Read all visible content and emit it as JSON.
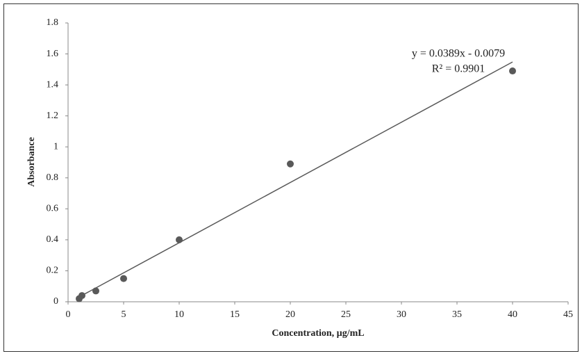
{
  "chart_data": {
    "type": "scatter",
    "x_label": "Concentration, µg/mL",
    "y_label": "Absorbance",
    "series": [
      {
        "name": "Absorbance",
        "color": "#595959",
        "x": [
          1,
          1.25,
          2.5,
          5,
          10,
          20,
          40
        ],
        "values": [
          0.02,
          0.04,
          0.07,
          0.15,
          0.4,
          0.89,
          1.49
        ]
      }
    ],
    "trendline": {
      "slope": 0.0389,
      "intercept": -0.0079,
      "color": "#595959",
      "equation": "y = 0.0389x - 0.0079",
      "r_squared": "R² = 0.9901"
    },
    "xlim": [
      0,
      45
    ],
    "xticks": [
      0,
      5,
      10,
      15,
      20,
      25,
      30,
      35,
      40,
      45
    ],
    "ylim": [
      0,
      1.8
    ],
    "yticks": [
      0,
      0.2,
      0.4,
      0.6,
      0.8,
      1,
      1.2,
      1.4,
      1.6,
      1.8
    ],
    "grid": false
  }
}
